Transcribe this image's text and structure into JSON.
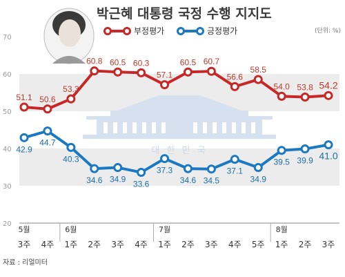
{
  "title": "박근혜 대통령 국정 수행 지지도",
  "unit_note": "(단위: %)",
  "source": "자료 : 리얼미터",
  "watermark_text": "대 한 민 국",
  "colors": {
    "negative": "#c62828",
    "positive": "#1b78c2",
    "band": "#ececec"
  },
  "chart_data": {
    "type": "line",
    "title": "박근혜 대통령 국정 수행 지지도",
    "ylim": [
      20,
      70
    ],
    "yticks": [
      20,
      30,
      40,
      50,
      60,
      70
    ],
    "categories": [
      "3주",
      "4주",
      "1주",
      "2주",
      "3주",
      "4주",
      "1주",
      "2주",
      "3주",
      "4주",
      "5주",
      "1주",
      "2주",
      "3주"
    ],
    "month_labels": [
      {
        "index": 0,
        "label": "5월"
      },
      {
        "index": 2,
        "label": "6월"
      },
      {
        "index": 6,
        "label": "7월"
      },
      {
        "index": 11,
        "label": "8월"
      }
    ],
    "legend_position": "top",
    "series": [
      {
        "name": "부정평가",
        "color": "#c62828",
        "values": [
          51.1,
          50.6,
          53.3,
          60.8,
          60.5,
          60.3,
          57.1,
          60.5,
          60.7,
          56.6,
          58.5,
          54.0,
          53.8,
          54.2
        ],
        "labels": [
          "51.1",
          "50.6",
          "53.3",
          "60.8",
          "60.5",
          "60.3",
          "57.1",
          "60.5",
          "60.7",
          "56.6",
          "58.5",
          "54.0",
          "53.8",
          "54.2"
        ]
      },
      {
        "name": "긍정평가",
        "color": "#1b78c2",
        "values": [
          42.9,
          44.7,
          40.3,
          34.6,
          34.9,
          33.6,
          37.3,
          34.6,
          34.5,
          37.1,
          34.9,
          39.5,
          39.9,
          41.0
        ],
        "labels": [
          "42.9",
          "44.7",
          "40.3",
          "34.6",
          "34.9",
          "33.6",
          "37.3",
          "34.6",
          "34.5",
          "37.1",
          "34.9",
          "39.5",
          "39.9",
          "41.0"
        ]
      }
    ]
  }
}
